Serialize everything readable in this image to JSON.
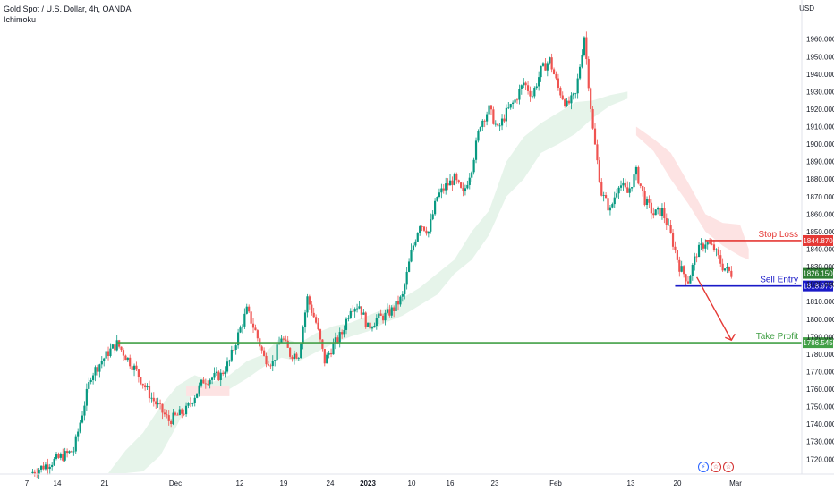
{
  "header": {
    "symbol_line": "Gold Spot / U.S. Dollar, 4h, OANDA",
    "indicator": "Ichimoku",
    "currency": "USD"
  },
  "footer_icons": [
    "lightning-icon",
    "us-flag-icon",
    "us-flag-icon"
  ],
  "colors": {
    "up": "#26a69a",
    "up_dark": "#089981",
    "down": "#ef5350",
    "cloud_green": "#e6f4ea",
    "cloud_red": "#fde3e3",
    "stop_loss": "#e53935",
    "sell_entry": "#1a1ac8",
    "take_profit": "#43a047",
    "last_price": "#2e7d32",
    "arrow": "#e53935"
  },
  "chart_data": {
    "type": "candlestick",
    "title": "Gold Spot / U.S. Dollar, 4h, OANDA",
    "indicator": "Ichimoku",
    "yaxis": {
      "range": [
        1713,
        1967
      ],
      "ticks": [
        1720,
        1730,
        1740,
        1750,
        1760,
        1770,
        1780,
        1790,
        1800,
        1810,
        1820,
        1830,
        1840,
        1850,
        1860,
        1870,
        1880,
        1890,
        1900,
        1910,
        1920,
        1930,
        1940,
        1950,
        1960
      ],
      "tick_labels": [
        "1720.000",
        "1730.000",
        "1740.000",
        "1750.000",
        "1760.000",
        "1770.000",
        "1780.000",
        "1790.000",
        "1800.000",
        "1810.000",
        "1820.000",
        "1830.000",
        "1840.000",
        "1850.000",
        "1860.000",
        "1870.000",
        "1880.000",
        "1890.000",
        "1900.000",
        "1910.000",
        "1920.000",
        "1930.000",
        "1940.000",
        "1950.000",
        "1960.000"
      ]
    },
    "xaxis": {
      "tick_labels": [
        {
          "label": "7",
          "bold": false
        },
        {
          "label": "14",
          "bold": false
        },
        {
          "label": "21",
          "bold": false
        },
        {
          "label": "Dec",
          "bold": false
        },
        {
          "label": "12",
          "bold": false
        },
        {
          "label": "19",
          "bold": false
        },
        {
          "label": "24",
          "bold": false
        },
        {
          "label": "2023",
          "bold": true
        },
        {
          "label": "10",
          "bold": false
        },
        {
          "label": "16",
          "bold": false
        },
        {
          "label": "23",
          "bold": false
        },
        {
          "label": "Feb",
          "bold": false
        },
        {
          "label": "13",
          "bold": false
        },
        {
          "label": "20",
          "bold": false
        },
        {
          "label": "Mar",
          "bold": false
        }
      ]
    },
    "price_path": [
      [
        0,
        1712
      ],
      [
        10,
        1725
      ],
      [
        14,
        1768
      ],
      [
        18,
        1781
      ],
      [
        20,
        1786
      ],
      [
        24,
        1772
      ],
      [
        28,
        1755
      ],
      [
        32,
        1742
      ],
      [
        36,
        1748
      ],
      [
        40,
        1765
      ],
      [
        44,
        1768
      ],
      [
        46,
        1776
      ],
      [
        48,
        1791
      ],
      [
        50,
        1805
      ],
      [
        52,
        1793
      ],
      [
        54,
        1778
      ],
      [
        56,
        1775
      ],
      [
        58,
        1790
      ],
      [
        60,
        1780
      ],
      [
        62,
        1780
      ],
      [
        64,
        1812
      ],
      [
        66,
        1798
      ],
      [
        68,
        1776
      ],
      [
        70,
        1785
      ],
      [
        72,
        1792
      ],
      [
        74,
        1807
      ],
      [
        76,
        1808
      ],
      [
        78,
        1795
      ],
      [
        80,
        1800
      ],
      [
        82,
        1802
      ],
      [
        84,
        1806
      ],
      [
        86,
        1813
      ],
      [
        88,
        1838
      ],
      [
        90,
        1855
      ],
      [
        92,
        1850
      ],
      [
        94,
        1870
      ],
      [
        96,
        1876
      ],
      [
        98,
        1880
      ],
      [
        100,
        1871
      ],
      [
        102,
        1887
      ],
      [
        104,
        1912
      ],
      [
        106,
        1920
      ],
      [
        108,
        1908
      ],
      [
        110,
        1918
      ],
      [
        112,
        1925
      ],
      [
        114,
        1935
      ],
      [
        116,
        1928
      ],
      [
        118,
        1942
      ],
      [
        120,
        1948
      ],
      [
        122,
        1932
      ],
      [
        124,
        1922
      ],
      [
        126,
        1928
      ],
      [
        128,
        1962
      ],
      [
        130,
        1908
      ],
      [
        132,
        1872
      ],
      [
        134,
        1862
      ],
      [
        136,
        1878
      ],
      [
        138,
        1872
      ],
      [
        140,
        1884
      ],
      [
        142,
        1868
      ],
      [
        144,
        1860
      ],
      [
        146,
        1862
      ],
      [
        148,
        1848
      ],
      [
        150,
        1830
      ],
      [
        152,
        1822
      ],
      [
        154,
        1838
      ],
      [
        156,
        1844
      ],
      [
        158,
        1840
      ],
      [
        160,
        1830
      ],
      [
        162,
        1826
      ]
    ],
    "cloud_green": [
      [
        18,
        1712
      ],
      [
        22,
        1725
      ],
      [
        26,
        1735
      ],
      [
        30,
        1750
      ],
      [
        34,
        1762
      ],
      [
        38,
        1768
      ],
      [
        42,
        1764
      ],
      [
        46,
        1768
      ],
      [
        50,
        1776
      ],
      [
        54,
        1780
      ],
      [
        58,
        1790
      ],
      [
        62,
        1786
      ],
      [
        66,
        1792
      ],
      [
        70,
        1796
      ],
      [
        74,
        1798
      ],
      [
        78,
        1802
      ],
      [
        82,
        1806
      ],
      [
        86,
        1812
      ],
      [
        90,
        1818
      ],
      [
        94,
        1826
      ],
      [
        98,
        1834
      ],
      [
        102,
        1850
      ],
      [
        106,
        1862
      ],
      [
        110,
        1890
      ],
      [
        114,
        1904
      ],
      [
        118,
        1912
      ],
      [
        122,
        1918
      ],
      [
        126,
        1924
      ],
      [
        130,
        1925
      ],
      [
        134,
        1928
      ],
      [
        138,
        1930
      ]
    ],
    "cloud_green_low": [
      [
        18,
        1712
      ],
      [
        22,
        1712
      ],
      [
        26,
        1713
      ],
      [
        30,
        1722
      ],
      [
        34,
        1740
      ],
      [
        38,
        1760
      ],
      [
        42,
        1758
      ],
      [
        46,
        1760
      ],
      [
        50,
        1766
      ],
      [
        54,
        1773
      ],
      [
        58,
        1778
      ],
      [
        62,
        1776
      ],
      [
        66,
        1781
      ],
      [
        70,
        1786
      ],
      [
        74,
        1790
      ],
      [
        78,
        1793
      ],
      [
        82,
        1798
      ],
      [
        86,
        1802
      ],
      [
        90,
        1808
      ],
      [
        94,
        1814
      ],
      [
        98,
        1826
      ],
      [
        102,
        1834
      ],
      [
        106,
        1848
      ],
      [
        110,
        1870
      ],
      [
        114,
        1880
      ],
      [
        118,
        1895
      ],
      [
        122,
        1900
      ],
      [
        126,
        1906
      ],
      [
        130,
        1915
      ],
      [
        134,
        1922
      ],
      [
        138,
        1926
      ]
    ],
    "cloud_red": [
      [
        140,
        1910
      ],
      [
        144,
        1903
      ],
      [
        148,
        1895
      ],
      [
        152,
        1878
      ],
      [
        156,
        1860
      ],
      [
        160,
        1855
      ],
      [
        164,
        1854
      ],
      [
        166,
        1840
      ]
    ],
    "cloud_red_low": [
      [
        140,
        1905
      ],
      [
        144,
        1896
      ],
      [
        148,
        1880
      ],
      [
        152,
        1866
      ],
      [
        156,
        1850
      ],
      [
        160,
        1842
      ],
      [
        164,
        1836
      ],
      [
        166,
        1834
      ]
    ],
    "small_red_cloud": [
      [
        36,
        1762
      ],
      [
        46,
        1756
      ]
    ],
    "levels": [
      {
        "name": "Stop Loss",
        "value": 1844.87,
        "label": "1844.870",
        "color_key": "stop_loss"
      },
      {
        "name": "Sell Entry",
        "value": 1818.975,
        "label": "1818.975",
        "color_key": "sell_entry"
      },
      {
        "name": "Take Profit",
        "value": 1786.545,
        "label": "1786.545",
        "color_key": "take_profit"
      }
    ],
    "last_price": {
      "value": 1826.15,
      "label": "1826.150"
    },
    "annotations": [
      "Stop Loss",
      "Sell Entry",
      "Take Profit"
    ]
  }
}
